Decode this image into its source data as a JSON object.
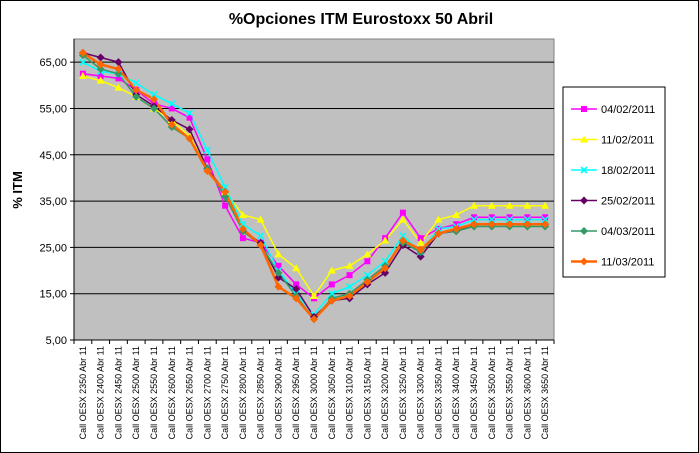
{
  "chart_data": {
    "type": "line",
    "title": "%Opciones ITM Eurostoxx 50 Abril",
    "xlabel": "",
    "ylabel": "% ITM",
    "ylim": [
      5,
      70
    ],
    "yticks": [
      "5,00",
      "15,00",
      "25,00",
      "35,00",
      "45,00",
      "55,00",
      "65,00"
    ],
    "grid": "horizontal",
    "legend_position": "right",
    "plot_background": "#c0c0c0",
    "categories": [
      "Call OESX 2350 Abr 11",
      "Call OESX 2400 Abr 11",
      "Call OESX 2450 Abr 11",
      "Call OESX 2500 Abr 11",
      "Call OESX 2550 Abr 11",
      "Call OESX 2600 Abr 11",
      "Call OESX 2650 Abr 11",
      "Call OESX 2700 Abr 11",
      "Call OESX 2750 Abr 11",
      "Call OESX 2800 Abr 11",
      "Call OESX 2850 Abr 11",
      "Call OESX 2900 Abr 11",
      "Call OESX 2950 Abr 11",
      "Call OESX 3000 Abr 11",
      "Call OESX 3050 Abr 11",
      "Call OESX 3100 Abr 11",
      "Call OESX 3150 Abr 11",
      "Call OESX 3200 Abr 11",
      "Call OESX 3250 Abr 11",
      "Call OESX 3300 Abr 11",
      "Call OESX 3350 Abr 11",
      "Call OESX 3400 Abr 11",
      "Call OESX 3450 Abr 11",
      "Call OESX 3500 Abr 11",
      "Call OESX 3550 Abr 11",
      "Call OESX 3600 Abr 11",
      "Call OESX 3650 Abr 11"
    ],
    "series": [
      {
        "name": "04/02/2011",
        "color": "#ff00ff",
        "marker": "square",
        "values": [
          62.5,
          62,
          61.5,
          59,
          56,
          55,
          53,
          44,
          34,
          27,
          26,
          21,
          17,
          14,
          17,
          19,
          22,
          27,
          32.5,
          27,
          29,
          30,
          31.5,
          31.5,
          31.5,
          31.5,
          31.5
        ]
      },
      {
        "name": "11/02/2011",
        "color": "#ffff00",
        "marker": "triangle",
        "values": [
          62,
          61,
          59.5,
          57.5,
          55,
          52.5,
          49,
          42,
          37,
          32,
          31,
          23.5,
          20.5,
          14.5,
          20,
          21,
          23.5,
          26.5,
          31,
          26,
          31,
          32,
          34,
          34,
          34,
          34,
          34
        ]
      },
      {
        "name": "18/02/2011",
        "color": "#00ffff",
        "marker": "x",
        "values": [
          65,
          63,
          62.5,
          60.5,
          58,
          56,
          54,
          46,
          38,
          30,
          27.5,
          20,
          15,
          10.5,
          15,
          16.5,
          19,
          22,
          27.5,
          24,
          29,
          29.5,
          31,
          31,
          31,
          31,
          31
        ]
      },
      {
        "name": "25/02/2011",
        "color": "#660066",
        "marker": "diamond",
        "values": [
          67,
          66,
          65,
          58,
          55.5,
          52.5,
          50.5,
          42,
          37,
          28.5,
          26,
          18.5,
          16,
          10,
          13.5,
          14,
          17,
          19.5,
          25.5,
          23,
          28,
          28.5,
          30,
          30,
          30,
          30,
          30
        ]
      },
      {
        "name": "04/03/2011",
        "color": "#339966",
        "marker": "diamond",
        "values": [
          66.5,
          63.5,
          62.5,
          57.5,
          55,
          51,
          48.5,
          42,
          36,
          28.5,
          25.5,
          19.5,
          14.5,
          9.5,
          14,
          15,
          18,
          21,
          26,
          24,
          28,
          28.5,
          29.5,
          29.5,
          29.5,
          29.5,
          29.5
        ]
      },
      {
        "name": "11/03/2011",
        "color": "#ff6600",
        "marker": "diamond",
        "values": [
          67,
          64.5,
          63.5,
          59,
          57,
          51.5,
          48.5,
          41.5,
          37,
          29,
          25.5,
          16.5,
          14,
          9.5,
          13.5,
          14.5,
          17.5,
          20.5,
          26.5,
          24.5,
          28,
          29,
          30,
          30,
          30,
          30,
          30
        ]
      }
    ]
  }
}
